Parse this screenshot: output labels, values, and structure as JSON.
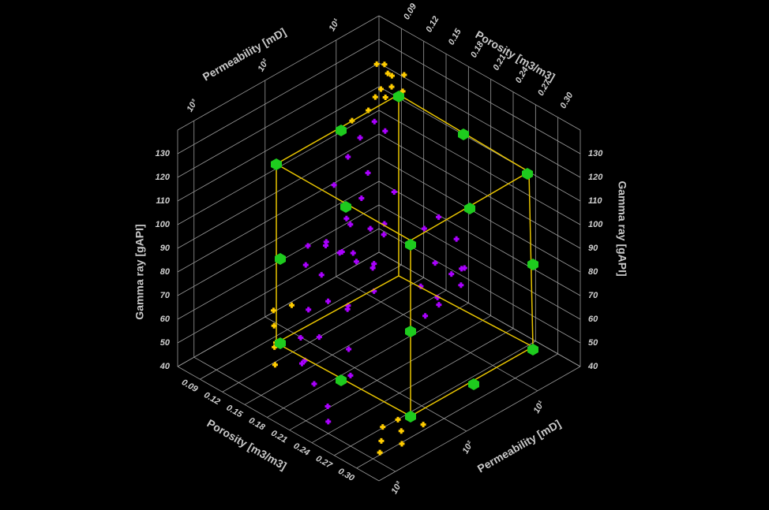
{
  "chart_data": {
    "type": "scatter3d",
    "xlabel": "Porosity [m3/m3]",
    "ylabel": "Permeability [mD]",
    "zlabel": "Gamma ray [gAPI]",
    "xlim": [
      0.06,
      0.33
    ],
    "xticks": [
      0.09,
      0.12,
      0.15,
      0.18,
      0.21,
      0.24,
      0.27,
      {
        "value": 0.3,
        "label": "0.30"
      }
    ],
    "ylim": [
      2.5,
      1700
    ],
    "ylog": true,
    "yticks": [
      {
        "value": 10,
        "label": "10¹"
      },
      {
        "value": 100,
        "label": "10²"
      },
      {
        "value": 1000,
        "label": "10³"
      }
    ],
    "zlim": [
      40,
      140
    ],
    "zticks": [
      40,
      50,
      60,
      70,
      80,
      90,
      100,
      110,
      120,
      130
    ],
    "grid": true,
    "series": [
      {
        "color": "#aa00ff",
        "x": [
          0.18,
          0.19,
          0.17,
          0.2,
          0.18,
          0.16,
          0.19,
          0.21,
          0.17,
          0.18,
          0.2,
          0.16,
          0.19,
          0.15,
          0.22,
          0.18,
          0.17,
          0.2,
          0.19,
          0.21,
          0.18,
          0.2,
          0.16,
          0.15,
          0.14,
          0.15,
          0.13,
          0.16,
          0.25,
          0.26,
          0.24,
          0.27,
          0.25,
          0.26,
          0.23,
          0.27,
          0.24,
          0.28,
          0.25,
          0.26,
          0.22,
          0.23,
          0.24,
          0.19,
          0.17,
          0.21,
          0.18,
          0.22,
          0.2,
          0.16
        ],
        "y": [
          150,
          120,
          200,
          90,
          250,
          180,
          300,
          110,
          90,
          130,
          200,
          300,
          160,
          220,
          140,
          80,
          350,
          170,
          400,
          250,
          500,
          600,
          120,
          60,
          20,
          18,
          25,
          40,
          40,
          30,
          50,
          25,
          20,
          45,
          35,
          60,
          28,
          35,
          55,
          22,
          300,
          800,
          1000,
          700,
          450,
          80,
          60,
          100,
          45,
          100
        ],
        "z": [
          92,
          88,
          95,
          85,
          100,
          80,
          78,
          90,
          98,
          105,
          75,
          88,
          70,
          92,
          82,
          110,
          72,
          96,
          65,
          60,
          55,
          50,
          115,
          120,
          125,
          122,
          118,
          112,
          90,
          85,
          80,
          88,
          95,
          75,
          100,
          82,
          105,
          92,
          70,
          78,
          52,
          48,
          45,
          58,
          62,
          100,
          95,
          108,
          112,
          85
        ]
      },
      {
        "color": "#ffcc00",
        "x": [
          0.12,
          0.13,
          0.11,
          0.12,
          0.13,
          0.12,
          0.11,
          0.14,
          0.12,
          0.13,
          0.12,
          0.11,
          0.3,
          0.29,
          0.31,
          0.3,
          0.29,
          0.31,
          0.28,
          0.3,
          0.11,
          0.12,
          0.1,
          0.13,
          0.12,
          0.14
        ],
        "y": [
          8,
          9,
          7,
          10,
          6,
          12,
          9,
          8,
          7,
          11,
          15,
          20,
          400,
          350,
          500,
          300,
          600,
          250,
          450,
          800,
          250,
          300,
          200,
          400,
          180,
          500
        ],
        "z": [
          135,
          132,
          136,
          130,
          134,
          128,
          138,
          131,
          133,
          129,
          124,
          120,
          45,
          47,
          43,
          48,
          42,
          46,
          44,
          41,
          52,
          48,
          55,
          50,
          60,
          46
        ]
      }
    ]
  }
}
